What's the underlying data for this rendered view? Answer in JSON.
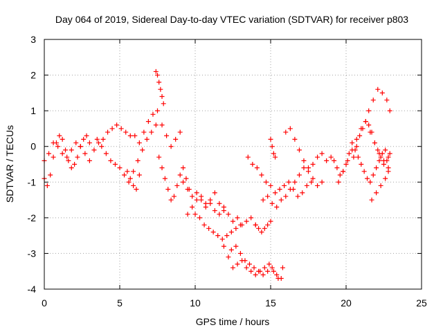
{
  "chart_data": {
    "type": "scatter",
    "title": "Day 064 of 2019, Sidereal Day-to-day VTEC variation (SDTVAR) for receiver p803",
    "xlabel": "GPS time / hours",
    "ylabel": "SDTVAR / TECUs",
    "xlim": [
      0,
      25
    ],
    "ylim": [
      -4,
      3
    ],
    "xticks": [
      "0",
      "5",
      "10",
      "15",
      "20",
      "25"
    ],
    "yticks": [
      "-4",
      "-3",
      "-2",
      "-1",
      "0",
      "1",
      "2",
      "3"
    ],
    "grid": true,
    "marker": "+",
    "series_color": "#ff0000",
    "series": [
      {
        "name": "SDTVAR",
        "x": [
          0.0,
          0.2,
          0.4,
          0.6,
          0.8,
          1.0,
          1.2,
          1.4,
          1.6,
          1.8,
          2.0,
          2.2,
          2.4,
          2.6,
          2.8,
          3.0,
          0.0,
          0.3,
          0.6,
          0.9,
          1.2,
          1.5,
          1.8,
          2.1,
          2.4,
          2.7,
          3.0,
          3.3,
          3.6,
          3.9,
          4.2,
          4.5,
          4.8,
          5.1,
          5.4,
          5.7,
          3.5,
          3.8,
          4.1,
          4.4,
          4.7,
          5.0,
          5.3,
          5.6,
          5.9,
          6.2,
          6.5,
          6.8,
          7.1,
          7.4,
          6.0,
          6.3,
          6.6,
          6.9,
          7.2,
          7.5,
          7.8,
          8.1,
          8.4,
          8.7,
          9.0,
          5.5,
          5.7,
          5.9,
          6.1,
          6.3,
          7.4,
          7.5,
          7.6,
          7.7,
          7.8,
          7.9,
          7.6,
          7.8,
          8.0,
          8.2,
          8.4,
          8.6,
          8.8,
          9.0,
          9.2,
          9.4,
          9.6,
          9.5,
          9.8,
          10.1,
          10.4,
          10.7,
          11.0,
          11.3,
          11.6,
          11.9,
          12.2,
          12.5,
          12.8,
          13.1,
          13.4,
          13.7,
          14.0,
          9.2,
          9.5,
          9.8,
          10.1,
          10.4,
          10.7,
          11.0,
          11.3,
          11.6,
          11.9,
          10.0,
          10.3,
          10.6,
          10.9,
          11.2,
          11.5,
          11.8,
          12.1,
          12.4,
          12.7,
          13.0,
          11.9,
          12.2,
          12.5,
          12.8,
          13.1,
          13.4,
          13.7,
          14.0,
          14.3,
          14.6,
          14.9,
          15.2,
          15.5,
          15.8,
          12.4,
          12.7,
          13.0,
          13.3,
          13.6,
          13.9,
          14.2,
          14.5,
          14.8,
          15.1,
          15.4,
          15.7,
          14.0,
          14.2,
          14.4,
          14.6,
          14.8,
          15.0,
          13.5,
          13.8,
          14.1,
          14.4,
          14.7,
          15.0,
          15.3,
          15.6,
          15.9,
          16.2,
          16.5,
          16.8,
          17.1,
          17.4,
          17.7,
          14.5,
          14.8,
          15.1,
          15.4,
          15.7,
          16.0,
          16.3,
          16.6,
          16.9,
          17.2,
          17.5,
          17.8,
          18.1,
          18.4,
          16.0,
          16.3,
          16.6,
          16.9,
          17.2,
          17.5,
          17.8,
          18.1,
          18.4,
          18.7,
          19.0,
          15.0,
          15.1,
          15.2,
          15.3,
          19.2,
          19.4,
          19.6,
          19.8,
          20.0,
          20.2,
          20.4,
          20.6,
          20.8,
          21.0,
          21.2,
          21.4,
          21.6,
          21.8,
          22.0,
          22.2,
          22.4,
          22.6,
          22.8,
          19.5,
          19.8,
          20.1,
          20.4,
          20.7,
          21.0,
          21.3,
          21.6,
          21.9,
          22.2,
          22.5,
          22.8,
          20.5,
          20.7,
          20.9,
          21.1,
          21.3,
          21.5,
          21.7,
          21.9,
          22.1,
          22.3,
          22.5,
          22.7,
          22.9,
          21.5,
          21.8,
          22.1,
          22.4,
          22.7,
          22.9,
          21.7,
          22.0,
          22.3,
          22.6,
          22.8
        ],
        "y": [
          -0.9,
          -1.1,
          -0.8,
          -0.3,
          0.1,
          0.3,
          0.2,
          -0.1,
          -0.4,
          -0.6,
          -0.5,
          -0.3,
          0.0,
          0.2,
          0.3,
          0.1,
          -0.4,
          -0.2,
          0.1,
          0.0,
          -0.2,
          -0.3,
          -0.1,
          0.1,
          0.0,
          -0.2,
          -0.4,
          -0.1,
          0.1,
          0.2,
          0.4,
          0.5,
          0.6,
          0.5,
          0.4,
          0.3,
          0.2,
          0.0,
          -0.2,
          -0.4,
          -0.5,
          -0.6,
          -0.8,
          -1.0,
          -0.7,
          -0.4,
          -0.1,
          0.2,
          0.4,
          0.6,
          0.3,
          0.1,
          0.4,
          0.7,
          0.9,
          1.0,
          0.6,
          0.3,
          0.0,
          0.2,
          0.4,
          -0.7,
          -0.9,
          -1.1,
          -1.2,
          -0.8,
          2.1,
          2.0,
          1.8,
          1.6,
          1.4,
          1.2,
          -0.3,
          -0.6,
          -0.9,
          -1.2,
          -1.5,
          -1.4,
          -1.1,
          -0.8,
          -0.6,
          -0.9,
          -1.2,
          -1.9,
          -1.7,
          -1.5,
          -1.4,
          -1.6,
          -1.5,
          -1.3,
          -1.6,
          -1.8,
          -1.9,
          -2.1,
          -2.0,
          -2.2,
          -2.1,
          -2.0,
          -2.2,
          -1.0,
          -1.2,
          -1.4,
          -1.3,
          -1.5,
          -1.7,
          -1.6,
          -1.8,
          -1.9,
          -1.7,
          -1.9,
          -2.0,
          -2.2,
          -2.3,
          -2.4,
          -2.5,
          -2.6,
          -2.5,
          -2.4,
          -2.3,
          -2.2,
          -2.8,
          -3.1,
          -3.4,
          -3.3,
          -3.2,
          -3.4,
          -3.5,
          -3.6,
          -3.5,
          -3.4,
          -3.3,
          -3.5,
          -3.7,
          -3.4,
          -2.9,
          -2.8,
          -3.0,
          -3.2,
          -3.3,
          -3.4,
          -3.5,
          -3.6,
          -3.5,
          -3.4,
          -3.6,
          -3.7,
          -2.2,
          -2.3,
          -2.4,
          -2.3,
          -2.2,
          -2.1,
          -0.3,
          -0.5,
          -0.6,
          -0.8,
          -1.0,
          -1.1,
          -1.3,
          -1.2,
          -1.1,
          -1.0,
          -1.2,
          -1.4,
          -1.3,
          -1.1,
          -1.0,
          -1.5,
          -1.4,
          -1.6,
          -1.7,
          -1.5,
          -1.4,
          -1.2,
          -1.0,
          -0.8,
          -0.6,
          -0.7,
          -0.9,
          -1.1,
          -1.0,
          0.4,
          0.5,
          0.2,
          -0.1,
          -0.4,
          -0.6,
          -0.5,
          -0.3,
          -0.2,
          -0.4,
          -0.3,
          0.2,
          0.0,
          -0.2,
          -0.3,
          -0.4,
          -0.6,
          -0.8,
          -0.7,
          -0.5,
          -0.2,
          0.1,
          -0.1,
          -0.3,
          -0.5,
          -0.7,
          -0.9,
          -1.0,
          -0.8,
          -0.6,
          -0.4,
          -0.2,
          -0.1,
          -0.3,
          -1.0,
          -0.7,
          -0.4,
          -0.1,
          0.2,
          0.5,
          0.7,
          0.4,
          0.1,
          -0.2,
          -0.4,
          -0.6,
          -0.3,
          0.0,
          0.3,
          0.5,
          0.7,
          0.6,
          0.4,
          0.1,
          -0.1,
          -0.3,
          -0.5,
          -0.4,
          -0.2,
          1.0,
          1.3,
          1.6,
          1.5,
          1.3,
          1.0,
          -1.5,
          -1.3,
          -1.1,
          -0.9,
          -0.7
        ]
      }
    ]
  }
}
